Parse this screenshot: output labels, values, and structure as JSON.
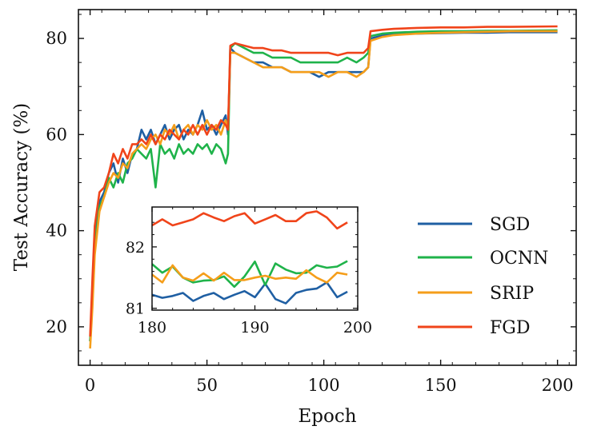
{
  "chart_data": {
    "type": "line",
    "xlabel": "Epoch",
    "ylabel": "Test Accuracy (%)",
    "xlim": [
      -5,
      208
    ],
    "ylim": [
      12,
      86
    ],
    "xticks": [
      0,
      50,
      100,
      150,
      200
    ],
    "yticks": [
      20,
      40,
      60,
      80
    ],
    "legend_position": "lower-right",
    "series": [
      {
        "name": "SGD",
        "color": "#1f5fa3",
        "points": [
          [
            0,
            17
          ],
          [
            1,
            28
          ],
          [
            2,
            40
          ],
          [
            4,
            46
          ],
          [
            6,
            48
          ],
          [
            8,
            52
          ],
          [
            10,
            54
          ],
          [
            12,
            50
          ],
          [
            14,
            55
          ],
          [
            16,
            52
          ],
          [
            18,
            56
          ],
          [
            20,
            57
          ],
          [
            22,
            61
          ],
          [
            24,
            59
          ],
          [
            26,
            61
          ],
          [
            28,
            58
          ],
          [
            30,
            60
          ],
          [
            32,
            62
          ],
          [
            34,
            59
          ],
          [
            36,
            61
          ],
          [
            38,
            62
          ],
          [
            40,
            59
          ],
          [
            42,
            61
          ],
          [
            44,
            60
          ],
          [
            46,
            62
          ],
          [
            48,
            65
          ],
          [
            50,
            61
          ],
          [
            52,
            62
          ],
          [
            54,
            60
          ],
          [
            56,
            62
          ],
          [
            58,
            64
          ],
          [
            59,
            60
          ],
          [
            60,
            78
          ],
          [
            62,
            77
          ],
          [
            66,
            76
          ],
          [
            70,
            75
          ],
          [
            74,
            75
          ],
          [
            78,
            74
          ],
          [
            82,
            74
          ],
          [
            86,
            73
          ],
          [
            90,
            73
          ],
          [
            94,
            73
          ],
          [
            98,
            72
          ],
          [
            102,
            73
          ],
          [
            106,
            73
          ],
          [
            110,
            73
          ],
          [
            114,
            73
          ],
          [
            117,
            73
          ],
          [
            119,
            74
          ],
          [
            120,
            80
          ],
          [
            125,
            80.6
          ],
          [
            130,
            80.9
          ],
          [
            140,
            81
          ],
          [
            150,
            81.1
          ],
          [
            160,
            81.2
          ],
          [
            170,
            81.2
          ],
          [
            180,
            81.3
          ],
          [
            200,
            81.3
          ]
        ]
      },
      {
        "name": "OCNN",
        "color": "#1fb34a",
        "points": [
          [
            0,
            17
          ],
          [
            1,
            26
          ],
          [
            2,
            37
          ],
          [
            4,
            45
          ],
          [
            6,
            47
          ],
          [
            8,
            51
          ],
          [
            10,
            49
          ],
          [
            12,
            52
          ],
          [
            14,
            50
          ],
          [
            16,
            54
          ],
          [
            18,
            55
          ],
          [
            20,
            57
          ],
          [
            22,
            56
          ],
          [
            24,
            55
          ],
          [
            26,
            57
          ],
          [
            28,
            49
          ],
          [
            30,
            58
          ],
          [
            32,
            56
          ],
          [
            34,
            57
          ],
          [
            36,
            55
          ],
          [
            38,
            58
          ],
          [
            40,
            56
          ],
          [
            42,
            57
          ],
          [
            44,
            56
          ],
          [
            46,
            58
          ],
          [
            48,
            57
          ],
          [
            50,
            58
          ],
          [
            52,
            56
          ],
          [
            54,
            58
          ],
          [
            56,
            57
          ],
          [
            58,
            54
          ],
          [
            59,
            56
          ],
          [
            60,
            78
          ],
          [
            62,
            79
          ],
          [
            66,
            78
          ],
          [
            70,
            77
          ],
          [
            74,
            77
          ],
          [
            78,
            76
          ],
          [
            82,
            76
          ],
          [
            86,
            76
          ],
          [
            90,
            75
          ],
          [
            94,
            75
          ],
          [
            98,
            75
          ],
          [
            102,
            75
          ],
          [
            106,
            75
          ],
          [
            110,
            76
          ],
          [
            114,
            75
          ],
          [
            117,
            76
          ],
          [
            119,
            77
          ],
          [
            120,
            80.5
          ],
          [
            125,
            81
          ],
          [
            130,
            81.2
          ],
          [
            140,
            81.4
          ],
          [
            150,
            81.5
          ],
          [
            160,
            81.5
          ],
          [
            170,
            81.6
          ],
          [
            180,
            81.6
          ],
          [
            200,
            81.7
          ]
        ]
      },
      {
        "name": "SRIP",
        "color": "#f59e1a",
        "points": [
          [
            0,
            15.5
          ],
          [
            1,
            24
          ],
          [
            2,
            35
          ],
          [
            4,
            44
          ],
          [
            6,
            47
          ],
          [
            8,
            50
          ],
          [
            10,
            52
          ],
          [
            12,
            51
          ],
          [
            14,
            54
          ],
          [
            16,
            53
          ],
          [
            18,
            56
          ],
          [
            20,
            57
          ],
          [
            22,
            58
          ],
          [
            24,
            57
          ],
          [
            26,
            59
          ],
          [
            28,
            60
          ],
          [
            30,
            58
          ],
          [
            32,
            61
          ],
          [
            34,
            60
          ],
          [
            36,
            62
          ],
          [
            38,
            59
          ],
          [
            40,
            61
          ],
          [
            42,
            62
          ],
          [
            44,
            60
          ],
          [
            46,
            62
          ],
          [
            48,
            61
          ],
          [
            50,
            63
          ],
          [
            52,
            61
          ],
          [
            54,
            62
          ],
          [
            56,
            60
          ],
          [
            58,
            63
          ],
          [
            59,
            61
          ],
          [
            60,
            77
          ],
          [
            62,
            77
          ],
          [
            66,
            76
          ],
          [
            70,
            75
          ],
          [
            74,
            74
          ],
          [
            78,
            74
          ],
          [
            82,
            74
          ],
          [
            86,
            73
          ],
          [
            90,
            73
          ],
          [
            94,
            73
          ],
          [
            98,
            73
          ],
          [
            102,
            72
          ],
          [
            106,
            73
          ],
          [
            110,
            73
          ],
          [
            114,
            72
          ],
          [
            117,
            73
          ],
          [
            119,
            74
          ],
          [
            120,
            79.5
          ],
          [
            125,
            80.3
          ],
          [
            130,
            80.7
          ],
          [
            140,
            81
          ],
          [
            150,
            81.2
          ],
          [
            160,
            81.3
          ],
          [
            170,
            81.4
          ],
          [
            180,
            81.5
          ],
          [
            200,
            81.5
          ]
        ]
      },
      {
        "name": "FGD",
        "color": "#f0441a",
        "points": [
          [
            0,
            18
          ],
          [
            1,
            30
          ],
          [
            2,
            41
          ],
          [
            4,
            48
          ],
          [
            6,
            49
          ],
          [
            8,
            52
          ],
          [
            10,
            56
          ],
          [
            12,
            54
          ],
          [
            14,
            57
          ],
          [
            16,
            55
          ],
          [
            18,
            58
          ],
          [
            20,
            58
          ],
          [
            22,
            59
          ],
          [
            24,
            58
          ],
          [
            26,
            60
          ],
          [
            28,
            58
          ],
          [
            30,
            60
          ],
          [
            32,
            59
          ],
          [
            34,
            61
          ],
          [
            36,
            60
          ],
          [
            38,
            59
          ],
          [
            40,
            61
          ],
          [
            42,
            60
          ],
          [
            44,
            62
          ],
          [
            46,
            60
          ],
          [
            48,
            62
          ],
          [
            50,
            60
          ],
          [
            52,
            62
          ],
          [
            54,
            61
          ],
          [
            56,
            63
          ],
          [
            58,
            62
          ],
          [
            59,
            61
          ],
          [
            60,
            78.5
          ],
          [
            62,
            79
          ],
          [
            66,
            78.5
          ],
          [
            70,
            78
          ],
          [
            74,
            78
          ],
          [
            78,
            77.5
          ],
          [
            82,
            77.5
          ],
          [
            86,
            77
          ],
          [
            90,
            77
          ],
          [
            94,
            77
          ],
          [
            98,
            77
          ],
          [
            102,
            77
          ],
          [
            106,
            76.5
          ],
          [
            110,
            77
          ],
          [
            114,
            77
          ],
          [
            117,
            77
          ],
          [
            119,
            78
          ],
          [
            120,
            81.5
          ],
          [
            125,
            81.8
          ],
          [
            130,
            82
          ],
          [
            140,
            82.2
          ],
          [
            150,
            82.3
          ],
          [
            160,
            82.3
          ],
          [
            170,
            82.4
          ],
          [
            180,
            82.4
          ],
          [
            200,
            82.5
          ]
        ]
      }
    ],
    "inset": {
      "xlim": [
        180,
        200
      ],
      "ylim": [
        80.97,
        82.65
      ],
      "xticks": [
        180,
        190,
        200
      ],
      "yticks": [
        81,
        82
      ],
      "series": [
        {
          "name": "SGD",
          "color": "#1f5fa3",
          "x": [
            180,
            181,
            182,
            183,
            184,
            185,
            186,
            187,
            188,
            189,
            190,
            191,
            192,
            193,
            194,
            195,
            196,
            197,
            198,
            199
          ],
          "values": [
            81.22,
            81.17,
            81.2,
            81.25,
            81.12,
            81.2,
            81.25,
            81.15,
            81.22,
            81.28,
            81.18,
            81.4,
            81.15,
            81.08,
            81.25,
            81.3,
            81.32,
            81.42,
            81.18,
            81.27
          ]
        },
        {
          "name": "OCNN",
          "color": "#1fb34a",
          "x": [
            180,
            181,
            182,
            183,
            184,
            185,
            186,
            187,
            188,
            189,
            190,
            191,
            192,
            193,
            194,
            195,
            196,
            197,
            198,
            199
          ],
          "values": [
            81.72,
            81.58,
            81.68,
            81.5,
            81.42,
            81.45,
            81.46,
            81.52,
            81.35,
            81.52,
            81.76,
            81.38,
            81.73,
            81.63,
            81.57,
            81.58,
            81.7,
            81.66,
            81.68,
            81.77
          ]
        },
        {
          "name": "SRIP",
          "color": "#f59e1a",
          "x": [
            180,
            181,
            182,
            183,
            184,
            185,
            186,
            187,
            188,
            189,
            190,
            191,
            192,
            193,
            194,
            195,
            196,
            197,
            198,
            199
          ],
          "values": [
            81.55,
            81.42,
            81.7,
            81.5,
            81.45,
            81.57,
            81.45,
            81.58,
            81.46,
            81.46,
            81.5,
            81.53,
            81.48,
            81.5,
            81.48,
            81.62,
            81.5,
            81.42,
            81.58,
            81.55
          ]
        },
        {
          "name": "FGD",
          "color": "#f0441a",
          "x": [
            180,
            181,
            182,
            183,
            184,
            185,
            186,
            187,
            188,
            189,
            190,
            191,
            192,
            193,
            194,
            195,
            196,
            197,
            198,
            199
          ],
          "values": [
            82.35,
            82.45,
            82.35,
            82.4,
            82.45,
            82.55,
            82.48,
            82.42,
            82.5,
            82.55,
            82.38,
            82.45,
            82.52,
            82.42,
            82.42,
            82.55,
            82.58,
            82.48,
            82.3,
            82.4
          ]
        }
      ]
    }
  }
}
